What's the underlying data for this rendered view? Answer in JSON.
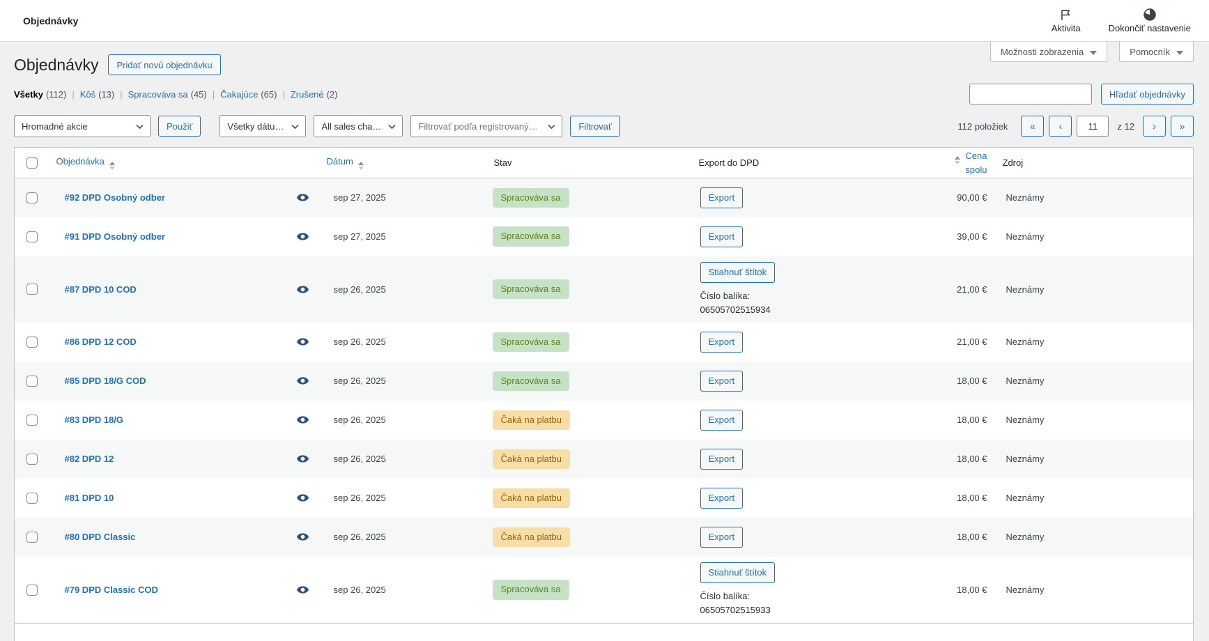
{
  "topbar": {
    "title": "Objednávky",
    "activity_label": "Aktivita",
    "finish_setup_label": "Dokončiť nastavenie"
  },
  "screen_meta": {
    "screen_options_label": "Možnosti zobrazenia",
    "help_label": "Pomocník"
  },
  "page": {
    "title": "Objednávky",
    "add_new_label": "Pridať novú objednávku"
  },
  "views": [
    {
      "label": "Všetky",
      "count": "(112)",
      "active": true
    },
    {
      "label": "Kôš",
      "count": "(13)",
      "active": false
    },
    {
      "label": "Spracováva sa",
      "count": "(45)",
      "active": false
    },
    {
      "label": "Čakajúce",
      "count": "(65)",
      "active": false
    },
    {
      "label": "Zrušené",
      "count": "(2)",
      "active": false
    }
  ],
  "search": {
    "value": "",
    "button_label": "Hľadať objednávky"
  },
  "tablenav": {
    "bulk_actions": "Hromadné akcie",
    "apply_label": "Použiť",
    "dates_filter": "Všetky dátumy",
    "channels_filter": "All sales channels",
    "customer_filter": "Filtrovať podľa registrovaných ...",
    "filter_label": "Filtrovať",
    "items_count": "112 položiek",
    "pagination": {
      "first": "«",
      "prev": "‹",
      "current": "11",
      "of": "z 12",
      "next": "›",
      "last": "»"
    }
  },
  "table": {
    "columns": {
      "order": "Objednávka",
      "date": "Dátum",
      "status": "Stav",
      "export": "Export do DPD",
      "total": "Cena spolu",
      "origin": "Zdroj"
    },
    "rows": [
      {
        "order": "#92 DPD Osobný odber",
        "date": "sep 27, 2025",
        "status": "Spracováva sa",
        "status_type": "processing",
        "export_label": "Export",
        "total": "90,00 €",
        "origin": "Neznámy"
      },
      {
        "order": "#91 DPD Osobný odber",
        "date": "sep 27, 2025",
        "status": "Spracováva sa",
        "status_type": "processing",
        "export_label": "Export",
        "total": "39,00 €",
        "origin": "Neznámy"
      },
      {
        "order": "#87 DPD 10 COD",
        "date": "sep 26, 2025",
        "status": "Spracováva sa",
        "status_type": "processing",
        "export_label": "Stiahnuť štítok",
        "package_label": "Číslo balíka:",
        "package_number": "06505702515934",
        "total": "21,00 €",
        "origin": "Neznámy"
      },
      {
        "order": "#86 DPD 12 COD",
        "date": "sep 26, 2025",
        "status": "Spracováva sa",
        "status_type": "processing",
        "export_label": "Export",
        "total": "21,00 €",
        "origin": "Neznámy"
      },
      {
        "order": "#85 DPD 18/G COD",
        "date": "sep 26, 2025",
        "status": "Spracováva sa",
        "status_type": "processing",
        "export_label": "Export",
        "total": "18,00 €",
        "origin": "Neznámy"
      },
      {
        "order": "#83 DPD 18/G",
        "date": "sep 26, 2025",
        "status": "Čaká na platbu",
        "status_type": "pending",
        "export_label": "Export",
        "total": "18,00 €",
        "origin": "Neznámy"
      },
      {
        "order": "#82 DPD 12",
        "date": "sep 26, 2025",
        "status": "Čaká na platbu",
        "status_type": "pending",
        "export_label": "Export",
        "total": "18,00 €",
        "origin": "Neznámy"
      },
      {
        "order": "#81 DPD 10",
        "date": "sep 26, 2025",
        "status": "Čaká na platbu",
        "status_type": "pending",
        "export_label": "Export",
        "total": "18,00 €",
        "origin": "Neznámy"
      },
      {
        "order": "#80 DPD Classic",
        "date": "sep 26, 2025",
        "status": "Čaká na platbu",
        "status_type": "pending",
        "export_label": "Export",
        "total": "18,00 €",
        "origin": "Neznámy"
      },
      {
        "order": "#79 DPD Classic COD",
        "date": "sep 26, 2025",
        "status": "Spracováva sa",
        "status_type": "processing",
        "export_label": "Stiahnuť štítok",
        "package_label": "Číslo balíka:",
        "package_number": "06505702515933",
        "total": "18,00 €",
        "origin": "Neznámy"
      }
    ]
  },
  "icons": {
    "activity": "flag-icon",
    "finish_setup": "progress-pie-icon",
    "order_preview": "eye-icon",
    "sortable_column": "sort-arrows-icon",
    "dropdown": "chevron-down-icon"
  },
  "colors": {
    "accent_blue": "#2271b1",
    "page_background": "#f0f0f1",
    "table_border": "#c3c4c7",
    "row_alt_background": "#f6f7f7",
    "status_processing_bg": "#c6e1c6",
    "status_processing_text": "#5b841b",
    "status_pending_bg": "#f8dda7",
    "status_pending_text": "#94660c"
  }
}
